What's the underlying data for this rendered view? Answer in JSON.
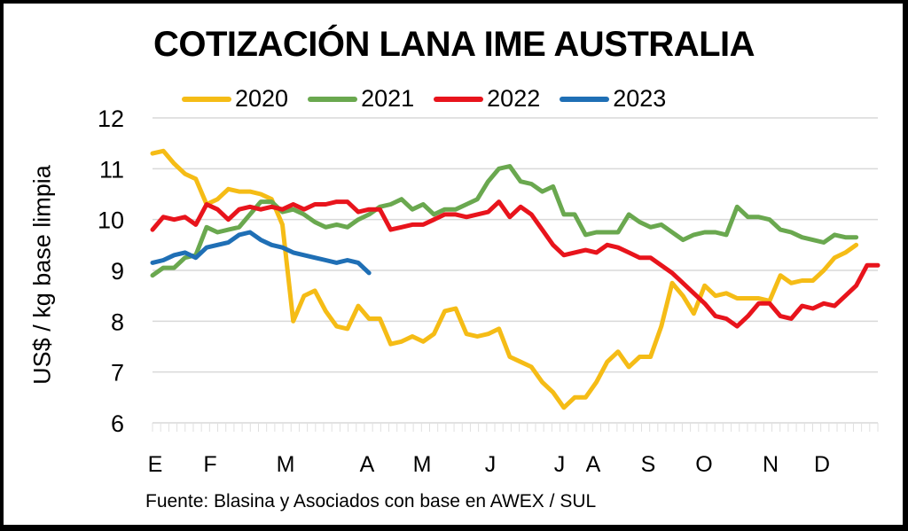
{
  "chart_data": {
    "type": "line",
    "title": "COTIZACIÓN LANA IME AUSTRALIA",
    "xlabel": "",
    "ylabel": "US$ / kg base limpia",
    "ylim": [
      6,
      12
    ],
    "yticks": [
      "6",
      "7",
      "8",
      "9",
      "10",
      "11",
      "12"
    ],
    "categories": [
      "E",
      "F",
      "M",
      "A",
      "M",
      "J",
      "J",
      "A",
      "S",
      "O",
      "N",
      "D"
    ],
    "grid": true,
    "legend": "top",
    "source": "Fuente: Blasina y Asociados con base en AWEX / SUL",
    "series": [
      {
        "name": "2020",
        "color": "#F5BC16",
        "values": [
          11.3,
          11.35,
          11.1,
          10.9,
          10.8,
          10.3,
          10.4,
          10.6,
          10.55,
          10.55,
          10.5,
          10.4,
          9.9,
          8.0,
          8.5,
          8.6,
          8.2,
          7.9,
          7.85,
          8.3,
          8.05,
          8.05,
          7.55,
          7.6,
          7.7,
          7.6,
          7.75,
          8.2,
          8.25,
          7.75,
          7.7,
          7.75,
          7.85,
          7.3,
          7.2,
          7.1,
          6.8,
          6.6,
          6.3,
          6.5,
          6.5,
          6.8,
          7.2,
          7.4,
          7.1,
          7.3,
          7.3,
          7.9,
          8.75,
          8.5,
          8.15,
          8.7,
          8.5,
          8.55,
          8.45,
          8.45,
          8.45,
          8.4,
          8.9,
          8.75,
          8.8,
          8.8,
          9.0,
          9.25,
          9.35,
          9.5
        ]
      },
      {
        "name": "2021",
        "color": "#6AA84F",
        "values": [
          8.9,
          9.05,
          9.05,
          9.25,
          9.3,
          9.85,
          9.75,
          9.8,
          9.85,
          10.1,
          10.35,
          10.35,
          10.15,
          10.2,
          10.1,
          9.95,
          9.85,
          9.9,
          9.85,
          10.0,
          10.1,
          10.25,
          10.3,
          10.4,
          10.2,
          10.3,
          10.1,
          10.2,
          10.2,
          10.3,
          10.4,
          10.75,
          11.0,
          11.05,
          10.75,
          10.7,
          10.55,
          10.65,
          10.1,
          10.1,
          9.7,
          9.75,
          9.75,
          9.75,
          10.1,
          9.95,
          9.85,
          9.9,
          9.75,
          9.6,
          9.7,
          9.75,
          9.75,
          9.7,
          10.25,
          10.05,
          10.05,
          10.0,
          9.8,
          9.75,
          9.65,
          9.6,
          9.55,
          9.7,
          9.65,
          9.65
        ]
      },
      {
        "name": "2022",
        "color": "#E8141C",
        "values": [
          9.8,
          10.05,
          10.0,
          10.05,
          9.9,
          10.3,
          10.2,
          10.0,
          10.2,
          10.25,
          10.2,
          10.25,
          10.2,
          10.3,
          10.2,
          10.3,
          10.3,
          10.35,
          10.35,
          10.15,
          10.2,
          10.2,
          9.8,
          9.85,
          9.9,
          9.9,
          10.0,
          10.1,
          10.1,
          10.05,
          10.1,
          10.15,
          10.35,
          10.05,
          10.25,
          10.1,
          9.8,
          9.5,
          9.3,
          9.35,
          9.4,
          9.35,
          9.5,
          9.45,
          9.35,
          9.25,
          9.25,
          9.1,
          8.95,
          8.75,
          8.55,
          8.35,
          8.1,
          8.05,
          7.9,
          8.1,
          8.35,
          8.35,
          8.1,
          8.05,
          8.3,
          8.25,
          8.35,
          8.3,
          8.5,
          8.7,
          9.1,
          9.1
        ]
      },
      {
        "name": "2023",
        "color": "#1F6FB5",
        "values": [
          9.15,
          9.2,
          9.3,
          9.35,
          9.25,
          9.45,
          9.5,
          9.55,
          9.7,
          9.75,
          9.6,
          9.5,
          9.45,
          9.35,
          9.3,
          9.25,
          9.2,
          9.15,
          9.2,
          9.15,
          8.95
        ]
      }
    ]
  }
}
